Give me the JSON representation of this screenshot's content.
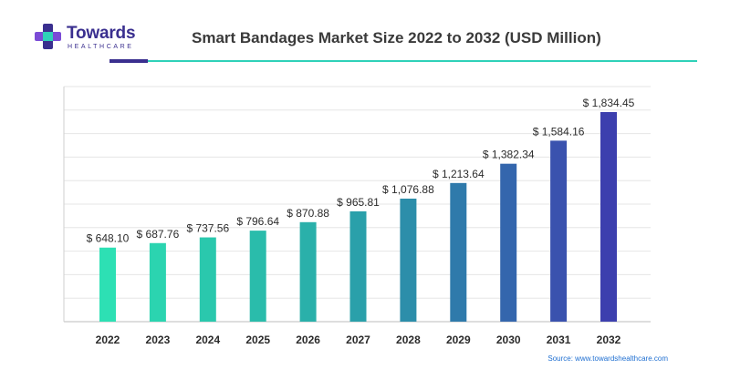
{
  "brand": {
    "name": "Towards",
    "tagline": "HEALTHCARE"
  },
  "source_note": "Source: www.towardshealthcare.com",
  "colors": {
    "brand_purple": "#3a2f8f",
    "accent_teal": "#2fd1b8",
    "source_blue": "#1f6fd1"
  },
  "chart_data": {
    "type": "bar",
    "title": "Smart Bandages Market Size 2022 to 2032 (USD Million)",
    "xlabel": "",
    "ylabel": "",
    "categories": [
      "2022",
      "2023",
      "2024",
      "2025",
      "2026",
      "2027",
      "2028",
      "2029",
      "2030",
      "2031",
      "2032"
    ],
    "values": [
      648.1,
      687.76,
      737.56,
      796.64,
      870.88,
      965.81,
      1076.88,
      1213.64,
      1382.34,
      1584.16,
      1834.45
    ],
    "data_labels": [
      "$ 648.10",
      "$ 687.76",
      "$ 737.56",
      "$ 796.64",
      "$ 870.88",
      "$ 965.81",
      "$ 1,076.88",
      "$ 1,213.64",
      "$ 1,382.34",
      "$ 1,584.16",
      "$ 1,834.45"
    ],
    "bar_colors": [
      "#2de0b4",
      "#2bd4b0",
      "#2ac8ad",
      "#2abcab",
      "#2ab0aa",
      "#2aa0aa",
      "#2c8eaa",
      "#2f7aab",
      "#3466ad",
      "#3a52ae",
      "#3c3fae"
    ],
    "ylim": [
      0,
      2000
    ],
    "grid": true,
    "legend": "none"
  }
}
